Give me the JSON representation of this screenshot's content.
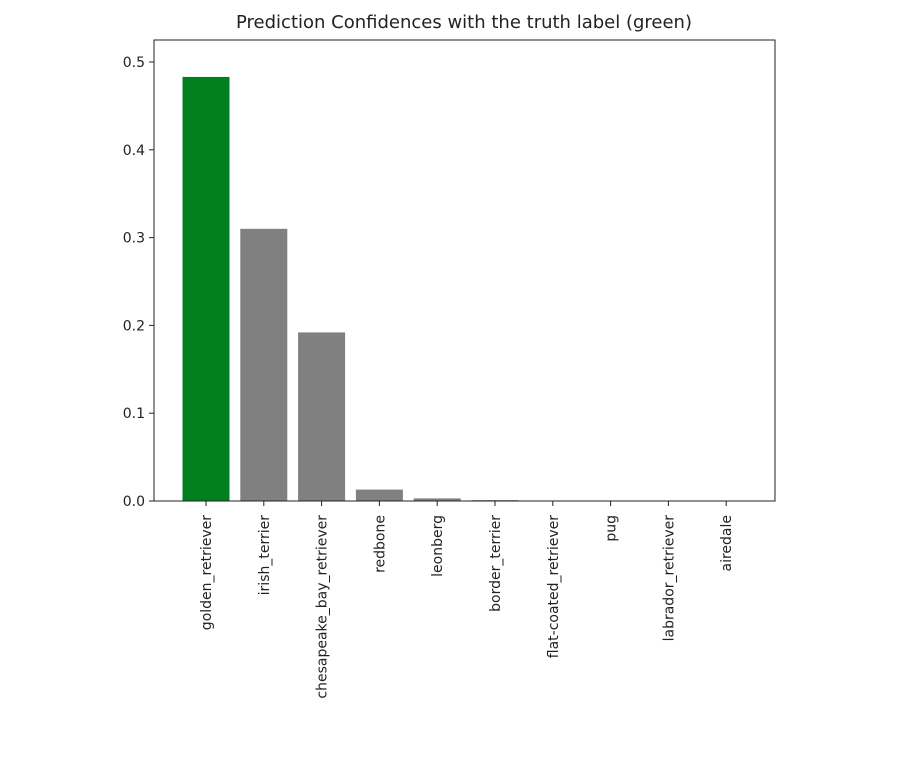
{
  "chart_data": {
    "type": "bar",
    "title": "Prediction Confidences with the truth label (green)",
    "xlabel": "",
    "ylabel": "",
    "categories": [
      "golden_retriever",
      "irish_terrier",
      "chesapeake_bay_retriever",
      "redbone",
      "leonberg",
      "border_terrier",
      "flat-coated_retriever",
      "pug",
      "labrador_retriever",
      "airedale"
    ],
    "values": [
      0.483,
      0.31,
      0.192,
      0.013,
      0.003,
      0.001,
      0.0003,
      0.0002,
      0.0001,
      0.0001
    ],
    "ylim": [
      0,
      0.5
    ],
    "yticks": [
      0.0,
      0.1,
      0.2,
      0.3,
      0.4,
      0.5
    ],
    "ytick_labels": [
      "0.0",
      "0.1",
      "0.2",
      "0.3",
      "0.4",
      "0.5"
    ],
    "grid": false,
    "highlight_index": 0,
    "colors": {
      "highlight": "#007f1f",
      "default": "#808080",
      "axis": "#222222",
      "text": "#222222"
    }
  }
}
